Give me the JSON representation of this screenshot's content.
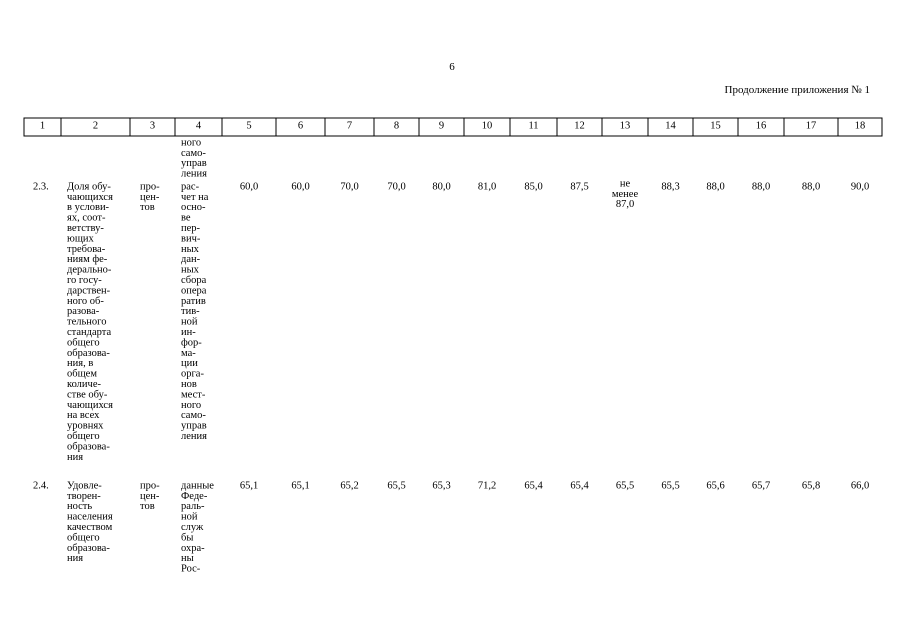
{
  "page_number": "6",
  "continuation": "Продолжение приложения № 1",
  "table": {
    "header": [
      "1",
      "2",
      "3",
      "4",
      "5",
      "6",
      "7",
      "8",
      "9",
      "10",
      "11",
      "12",
      "13",
      "14",
      "15",
      "16",
      "17",
      "18"
    ],
    "carryover": [
      "ного",
      "само-",
      "управ",
      "ления"
    ],
    "rows": [
      [
        "2.3.",
        [
          "Доля обу-",
          "чающихся",
          "в услови-",
          "ях, соот-",
          "ветству-",
          "ющих",
          "требова-",
          "ниям фе-",
          "дерально-",
          "го госу-",
          "дарствен-",
          "ного об-",
          "разова-",
          "тельного",
          "стандарта",
          "общего",
          "образова-",
          "ния, в",
          "общем",
          "количе-",
          "стве обу-",
          "чающихся",
          "на всех",
          "уровнях",
          "общего",
          "образова-",
          "ния"
        ],
        [
          "про-",
          "цен-",
          "тов"
        ],
        [
          "рас-",
          "чет на",
          "осно-",
          "ве",
          "пер-",
          "вич-",
          "ных",
          "дан-",
          "ных",
          "сбора",
          "опера",
          "ратив",
          "тив-",
          "ной",
          "ин-",
          "фор-",
          "ма-",
          "ции",
          "орга-",
          "нов",
          "мест-",
          "ного",
          "само-",
          "управ",
          "ления"
        ],
        "60,0",
        "60,0",
        "70,0",
        "70,0",
        "80,0",
        "81,0",
        "85,0",
        "87,5",
        [
          "не",
          "менее",
          "87,0"
        ],
        "88,3",
        "88,0",
        "88,0",
        "88,0",
        "90,0"
      ],
      [
        "2.4.",
        [
          "Удовле-",
          "творен-",
          "ность",
          "населения",
          "качеством",
          "общего",
          "образова-",
          "ния"
        ],
        [
          "про-",
          "цен-",
          "тов"
        ],
        [
          "данные",
          "Феде-",
          "раль-",
          "ной",
          "служ",
          "бы",
          "охра-",
          "ны",
          "Рос-"
        ],
        "65,1",
        "65,1",
        "65,2",
        "65,5",
        "65,3",
        "71,2",
        "65,4",
        "65,4",
        "65,5",
        "65,5",
        "65,6",
        "65,7",
        "65,8",
        "66,0"
      ]
    ]
  }
}
